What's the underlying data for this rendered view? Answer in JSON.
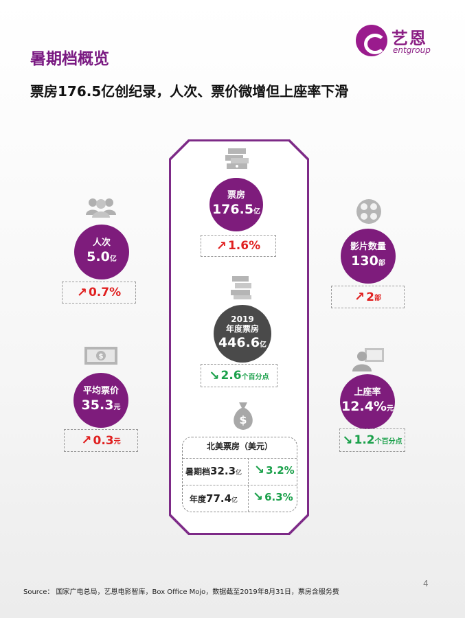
{
  "header": {
    "section_title": "暑期档概览",
    "headline": "票房176.5亿创纪录，人次、票价微增但上座率下滑"
  },
  "logo": {
    "cn": "艺恩",
    "en": "entgroup"
  },
  "metrics": {
    "box_office": {
      "label": "票房",
      "value": "176.5",
      "unit": "亿",
      "change": "1.6%",
      "direction": "up"
    },
    "annual_box_office": {
      "label_year": "2019",
      "label": "年度票房",
      "value": "446.6",
      "unit": "亿",
      "change": "2.6",
      "change_unit": "个百分点",
      "direction": "down"
    },
    "admissions": {
      "label": "人次",
      "value": "5.0",
      "unit": "亿",
      "change": "0.7%",
      "direction": "up"
    },
    "avg_price": {
      "label": "平均票价",
      "value": "35.3",
      "unit": "元",
      "change": "0.3",
      "change_unit": "元",
      "direction": "up"
    },
    "films": {
      "label": "影片数量",
      "value": "130",
      "unit": "部",
      "change": "2",
      "change_unit": "部",
      "direction": "up"
    },
    "occupancy": {
      "label": "上座率",
      "value": "12.4%",
      "unit": "元",
      "change": "1.2",
      "change_unit": "个百分点",
      "direction": "down"
    }
  },
  "north_america": {
    "title": "北美票房（美元）",
    "summer": {
      "label": "暑期档",
      "value": "32.3",
      "unit": "亿",
      "change": "3.2%",
      "direction": "down"
    },
    "annual": {
      "label": "年度",
      "value": "77.4",
      "unit": "亿",
      "change": "6.3%",
      "direction": "down"
    }
  },
  "icons": [
    "people-icon",
    "film-reel-icon",
    "money-stack-icon",
    "ticket-icon",
    "presenter-icon",
    "money-bag-icon"
  ],
  "colors": {
    "accent": "#7e1c7c",
    "up": "#e02020",
    "down": "#1aa04a",
    "gray_circle": "#4a4a4a"
  },
  "footer": {
    "source": "Source： 国家广电总局，艺恩电影智库，Box Office Mojo，数据截至2019年8月31日，票房含服务费",
    "page_number": "4"
  }
}
